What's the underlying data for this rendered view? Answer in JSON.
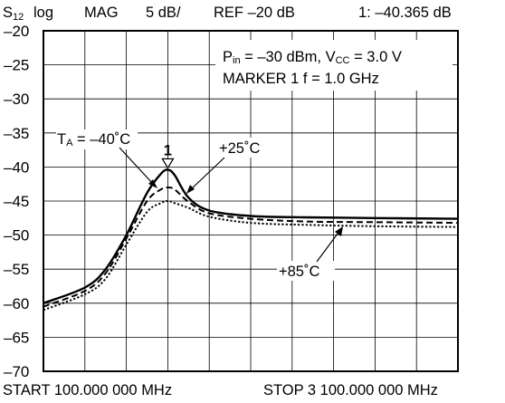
{
  "chart_data": {
    "type": "line",
    "header": {
      "param": "S",
      "param_sub": "12",
      "scale_type": "log",
      "format": "MAG",
      "scale": "5 dB/",
      "ref": "REF –20 dB",
      "marker_readout": "1: –40.365 dB"
    },
    "yticks": [
      "–20",
      "–25",
      "–30",
      "–35",
      "–40",
      "–45",
      "–50",
      "–55",
      "–60",
      "–65",
      "–70"
    ],
    "ylim": [
      -70,
      -20
    ],
    "xlim": [
      100,
      3100
    ],
    "x_unit": "MHz",
    "start_label": "START  100.000 000 MHz",
    "stop_label": "STOP  3 100.000 000 MHz",
    "grid": true,
    "conditions": {
      "pin_main": "P",
      "pin_sub": "in",
      "pin_rest": " = –30 dBm, V",
      "vcc_sub": "CC",
      "vcc_rest": " = 3.0 V",
      "marker_line": "MARKER 1  f = 1.0 GHz"
    },
    "marker": {
      "label": "1",
      "x": 1000,
      "y": -40.4
    },
    "series": [
      {
        "label_main": "T",
        "label_sub": "A",
        "label_rest": " = –40˚C",
        "style": "solid",
        "x": [
          100,
          400,
          550,
          700,
          850,
          950,
          1000,
          1050,
          1150,
          1300,
          1600,
          2000,
          2500,
          3100
        ],
        "y": [
          -60.0,
          -57.7,
          -55.0,
          -50.0,
          -43.8,
          -41.0,
          -40.4,
          -41.2,
          -44.5,
          -46.4,
          -47.2,
          -47.4,
          -47.5,
          -47.6
        ]
      },
      {
        "label_main": "+25˚C",
        "style": "dashed",
        "x": [
          100,
          400,
          550,
          700,
          850,
          950,
          1000,
          1050,
          1150,
          1300,
          1600,
          2000,
          2500,
          3100
        ],
        "y": [
          -60.5,
          -58.2,
          -55.6,
          -50.5,
          -45.0,
          -43.3,
          -43.0,
          -43.3,
          -45.1,
          -46.8,
          -47.6,
          -48.0,
          -48.1,
          -48.2
        ]
      },
      {
        "label_main": "+85˚C",
        "style": "dotted",
        "x": [
          100,
          400,
          550,
          700,
          850,
          950,
          1000,
          1050,
          1150,
          1300,
          1600,
          2000,
          2500,
          3100
        ],
        "y": [
          -61.0,
          -58.7,
          -56.4,
          -51.4,
          -46.6,
          -45.3,
          -45.0,
          -45.3,
          -46.0,
          -47.3,
          -48.2,
          -48.5,
          -48.7,
          -48.8
        ]
      }
    ]
  }
}
